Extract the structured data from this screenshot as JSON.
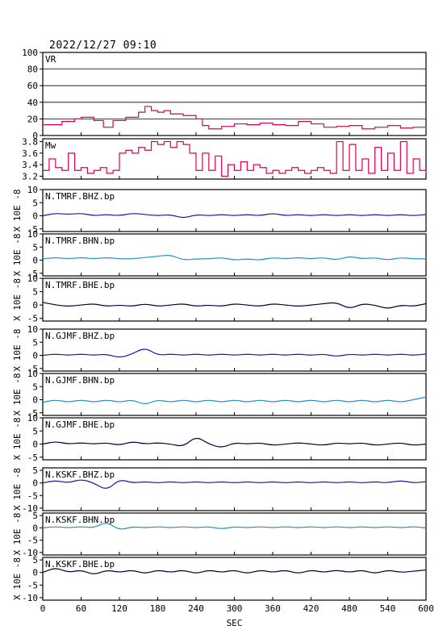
{
  "timestamp": "2022/12/27 09:10",
  "chart_data": {
    "type": "line",
    "xlabel": "SEC",
    "xlim": [
      0,
      600
    ],
    "xticks": [
      0,
      60,
      120,
      180,
      240,
      300,
      360,
      420,
      480,
      540,
      600
    ],
    "panels": [
      {
        "label": "VR",
        "ylabel": "",
        "ylim": [
          0,
          100
        ],
        "yticks": [
          0,
          20,
          40,
          60,
          80,
          100
        ],
        "grid": true,
        "color": "#e0004a",
        "shape": "step",
        "x": [
          0,
          30,
          50,
          60,
          80,
          95,
          110,
          130,
          150,
          160,
          170,
          180,
          190,
          200,
          220,
          240,
          250,
          260,
          280,
          300,
          320,
          340,
          360,
          380,
          400,
          420,
          440,
          460,
          480,
          500,
          520,
          540,
          560,
          580,
          600
        ],
        "values": [
          13,
          17,
          20,
          22,
          18,
          10,
          18,
          22,
          28,
          35,
          30,
          28,
          30,
          26,
          24,
          20,
          12,
          8,
          11,
          14,
          13,
          15,
          13,
          12,
          17,
          14,
          10,
          11,
          12,
          8,
          10,
          12,
          9,
          10,
          9
        ]
      },
      {
        "label": "Mw",
        "ylabel": "",
        "ylim": [
          3.15,
          3.85
        ],
        "yticks": [
          3.2,
          3.4,
          3.6,
          3.8
        ],
        "grid": false,
        "color": "#e0004a",
        "shape": "step",
        "x": [
          0,
          10,
          20,
          30,
          40,
          50,
          60,
          70,
          80,
          90,
          100,
          110,
          120,
          130,
          140,
          150,
          160,
          170,
          180,
          190,
          200,
          210,
          220,
          230,
          240,
          250,
          260,
          270,
          280,
          290,
          300,
          310,
          320,
          330,
          340,
          350,
          360,
          370,
          380,
          390,
          400,
          410,
          420,
          430,
          440,
          450,
          460,
          470,
          480,
          490,
          500,
          510,
          520,
          530,
          540,
          550,
          560,
          570,
          580,
          590,
          600
        ],
        "values": [
          3.3,
          3.5,
          3.35,
          3.3,
          3.6,
          3.3,
          3.35,
          3.25,
          3.3,
          3.35,
          3.25,
          3.3,
          3.6,
          3.65,
          3.6,
          3.7,
          3.65,
          3.8,
          3.75,
          3.8,
          3.7,
          3.8,
          3.75,
          3.6,
          3.3,
          3.6,
          3.3,
          3.55,
          3.2,
          3.4,
          3.3,
          3.45,
          3.3,
          3.4,
          3.35,
          3.25,
          3.3,
          3.25,
          3.3,
          3.35,
          3.3,
          3.25,
          3.3,
          3.35,
          3.3,
          3.25,
          3.8,
          3.3,
          3.75,
          3.3,
          3.5,
          3.25,
          3.7,
          3.3,
          3.6,
          3.3,
          3.8,
          3.25,
          3.5,
          3.3,
          3.25
        ]
      },
      {
        "label": "N.TMRF.BHZ.bp",
        "ylabel": "X 10E -8",
        "ylim": [
          -6,
          10
        ],
        "yticks": [
          -5,
          0,
          5,
          10
        ],
        "grid": false,
        "color": "#1a1aa0",
        "shape": "wave",
        "x": [
          0,
          20,
          40,
          60,
          80,
          100,
          120,
          140,
          160,
          180,
          200,
          220,
          240,
          260,
          280,
          300,
          320,
          340,
          360,
          380,
          400,
          420,
          440,
          460,
          480,
          500,
          520,
          540,
          560,
          580,
          600
        ],
        "values": [
          0,
          1,
          0.5,
          1,
          0,
          0.5,
          0,
          1,
          0.5,
          0,
          0.5,
          -1,
          0.5,
          0,
          0.5,
          0,
          0.5,
          0,
          1,
          0,
          0.5,
          0,
          0.5,
          0,
          0.5,
          0,
          0.5,
          0,
          0.5,
          0,
          0.5
        ]
      },
      {
        "label": "N.TMRF.BHN.bp",
        "ylabel": "X 10E -8",
        "ylim": [
          -6,
          10
        ],
        "yticks": [
          -5,
          0,
          5,
          10
        ],
        "grid": false,
        "color": "#1e90d0",
        "shape": "wave",
        "x": [
          0,
          20,
          40,
          60,
          80,
          100,
          120,
          140,
          160,
          180,
          200,
          220,
          240,
          260,
          280,
          300,
          320,
          340,
          360,
          380,
          400,
          420,
          440,
          460,
          480,
          500,
          520,
          540,
          560,
          580,
          600
        ],
        "values": [
          0.5,
          1,
          0.5,
          1,
          0.5,
          1,
          0.5,
          0.5,
          1,
          1.5,
          2,
          0,
          0.5,
          0.5,
          1,
          0,
          0.5,
          0,
          1,
          0.5,
          1,
          0.5,
          1,
          0,
          1.5,
          0.5,
          1,
          0,
          1,
          0.5,
          0.5
        ]
      },
      {
        "label": "N.TMRF.BHE.bp",
        "ylabel": "X 10E -8",
        "ylim": [
          -6,
          10
        ],
        "yticks": [
          -5,
          0,
          5,
          10
        ],
        "grid": false,
        "color": "#000040",
        "shape": "wave",
        "x": [
          0,
          20,
          40,
          60,
          80,
          100,
          120,
          140,
          160,
          180,
          200,
          220,
          240,
          260,
          280,
          300,
          320,
          340,
          360,
          380,
          400,
          420,
          440,
          460,
          480,
          500,
          520,
          540,
          560,
          580,
          600
        ],
        "values": [
          1,
          0,
          -0.5,
          0,
          0.5,
          -0.5,
          0,
          -0.5,
          0.5,
          -0.5,
          0,
          0.5,
          -0.5,
          0,
          -0.5,
          0.5,
          0,
          -0.5,
          0.5,
          0,
          -0.5,
          0,
          0.5,
          1,
          -1.5,
          0.5,
          0,
          -1.5,
          0,
          -0.5,
          0.5
        ]
      },
      {
        "label": "N.GJMF.BHZ.bp",
        "ylabel": "X 10E -8",
        "ylim": [
          -6,
          10
        ],
        "yticks": [
          -5,
          0,
          5,
          10
        ],
        "grid": false,
        "color": "#1a1aa0",
        "shape": "wave",
        "x": [
          0,
          20,
          40,
          60,
          80,
          100,
          120,
          140,
          160,
          180,
          200,
          220,
          240,
          260,
          280,
          300,
          320,
          340,
          360,
          380,
          400,
          420,
          440,
          460,
          480,
          500,
          520,
          540,
          560,
          580,
          600
        ],
        "values": [
          0,
          0.5,
          0,
          0.5,
          0,
          0.5,
          -1,
          0.5,
          3,
          0,
          0.5,
          0,
          0.5,
          0,
          0.5,
          0,
          0.5,
          0,
          0.5,
          0,
          0.5,
          0,
          0.5,
          -0.5,
          0.5,
          0,
          0.5,
          0,
          0.5,
          0,
          0.5
        ]
      },
      {
        "label": "N.GJMF.BHN.bp",
        "ylabel": "X 10E -8",
        "ylim": [
          -6,
          10
        ],
        "yticks": [
          -5,
          0,
          5,
          10
        ],
        "grid": false,
        "color": "#1e90d0",
        "shape": "wave",
        "x": [
          0,
          20,
          40,
          60,
          80,
          100,
          120,
          140,
          160,
          180,
          200,
          220,
          240,
          260,
          280,
          300,
          320,
          340,
          360,
          380,
          400,
          420,
          440,
          460,
          480,
          500,
          520,
          540,
          560,
          580,
          600
        ],
        "values": [
          -1,
          0,
          -1,
          0,
          -1,
          0,
          -1,
          0,
          -2,
          0,
          -1,
          0,
          -1,
          0,
          -1,
          0,
          -1,
          0,
          -1,
          0,
          -1,
          0,
          -1,
          0,
          -1,
          0,
          -1,
          0,
          -1,
          0,
          1
        ]
      },
      {
        "label": "N.GJMF.BHE.bp",
        "ylabel": "X 10E -8",
        "ylim": [
          -6,
          10
        ],
        "yticks": [
          -5,
          0,
          5,
          10
        ],
        "grid": false,
        "color": "#000040",
        "shape": "wave",
        "x": [
          0,
          20,
          40,
          60,
          80,
          100,
          120,
          140,
          160,
          180,
          200,
          220,
          240,
          260,
          280,
          300,
          320,
          340,
          360,
          380,
          400,
          420,
          440,
          460,
          480,
          500,
          520,
          540,
          560,
          580,
          600
        ],
        "values": [
          0,
          1,
          0,
          0.5,
          0,
          0.5,
          -0.5,
          1,
          0,
          0.5,
          0,
          -1,
          3,
          0,
          -1.5,
          0.5,
          0,
          0.5,
          -0.5,
          0,
          0.5,
          0,
          -0.5,
          0.5,
          0,
          0.5,
          -0.5,
          0,
          0.5,
          -0.5,
          0
        ]
      },
      {
        "label": "N.KSKF.BHZ.bp",
        "ylabel": "X 10E -8",
        "ylim": [
          -11,
          6
        ],
        "yticks": [
          -10,
          -5,
          0,
          5
        ],
        "grid": false,
        "color": "#1a1aa0",
        "shape": "wave",
        "x": [
          0,
          20,
          40,
          60,
          80,
          100,
          120,
          140,
          160,
          180,
          200,
          220,
          240,
          260,
          280,
          300,
          320,
          340,
          360,
          380,
          400,
          420,
          440,
          460,
          480,
          500,
          520,
          540,
          560,
          580,
          600
        ],
        "values": [
          0,
          1,
          0,
          1.5,
          0,
          -3,
          1.5,
          0,
          0.5,
          0,
          0.5,
          0,
          0.5,
          0,
          0.5,
          0,
          0.5,
          0,
          0.5,
          0,
          0.5,
          0,
          0.5,
          0,
          0.5,
          0,
          0.5,
          0,
          1,
          0,
          0.5
        ]
      },
      {
        "label": "N.KSKF.BHN.bp",
        "ylabel": "X 10E -8",
        "ylim": [
          -11,
          6
        ],
        "yticks": [
          -10,
          -5,
          0,
          5
        ],
        "grid": false,
        "color": "#1e90d0",
        "shape": "wave",
        "x": [
          0,
          20,
          40,
          60,
          80,
          100,
          120,
          140,
          160,
          180,
          200,
          220,
          240,
          260,
          280,
          300,
          320,
          340,
          360,
          380,
          400,
          420,
          440,
          460,
          480,
          500,
          520,
          540,
          560,
          580,
          600
        ],
        "values": [
          0,
          0.5,
          0,
          0.5,
          0,
          2.5,
          -1,
          0.5,
          0,
          0.5,
          0,
          0.5,
          0,
          0.5,
          -0.5,
          0.5,
          0,
          0.5,
          0,
          0.5,
          0,
          0.5,
          0,
          0.5,
          0,
          0.5,
          0,
          0.5,
          0,
          0.5,
          0
        ]
      },
      {
        "label": "N.KSKF.BHE.bp",
        "ylabel": "X 10E -8",
        "ylim": [
          -11,
          6
        ],
        "yticks": [
          -10,
          -5,
          0,
          5
        ],
        "grid": false,
        "color": "#000040",
        "shape": "wave",
        "x": [
          0,
          20,
          40,
          60,
          80,
          100,
          120,
          140,
          160,
          180,
          200,
          220,
          240,
          260,
          280,
          300,
          320,
          340,
          360,
          380,
          400,
          420,
          440,
          460,
          480,
          500,
          520,
          540,
          560,
          580,
          600
        ],
        "values": [
          0,
          2,
          0,
          1,
          -1,
          1,
          0,
          1,
          -0.5,
          1,
          0,
          1,
          -0.5,
          1,
          0,
          1,
          -0.5,
          1,
          0,
          1,
          -0.5,
          1,
          0,
          1,
          0,
          1,
          -0.5,
          1,
          0,
          0.5,
          1
        ]
      }
    ]
  }
}
